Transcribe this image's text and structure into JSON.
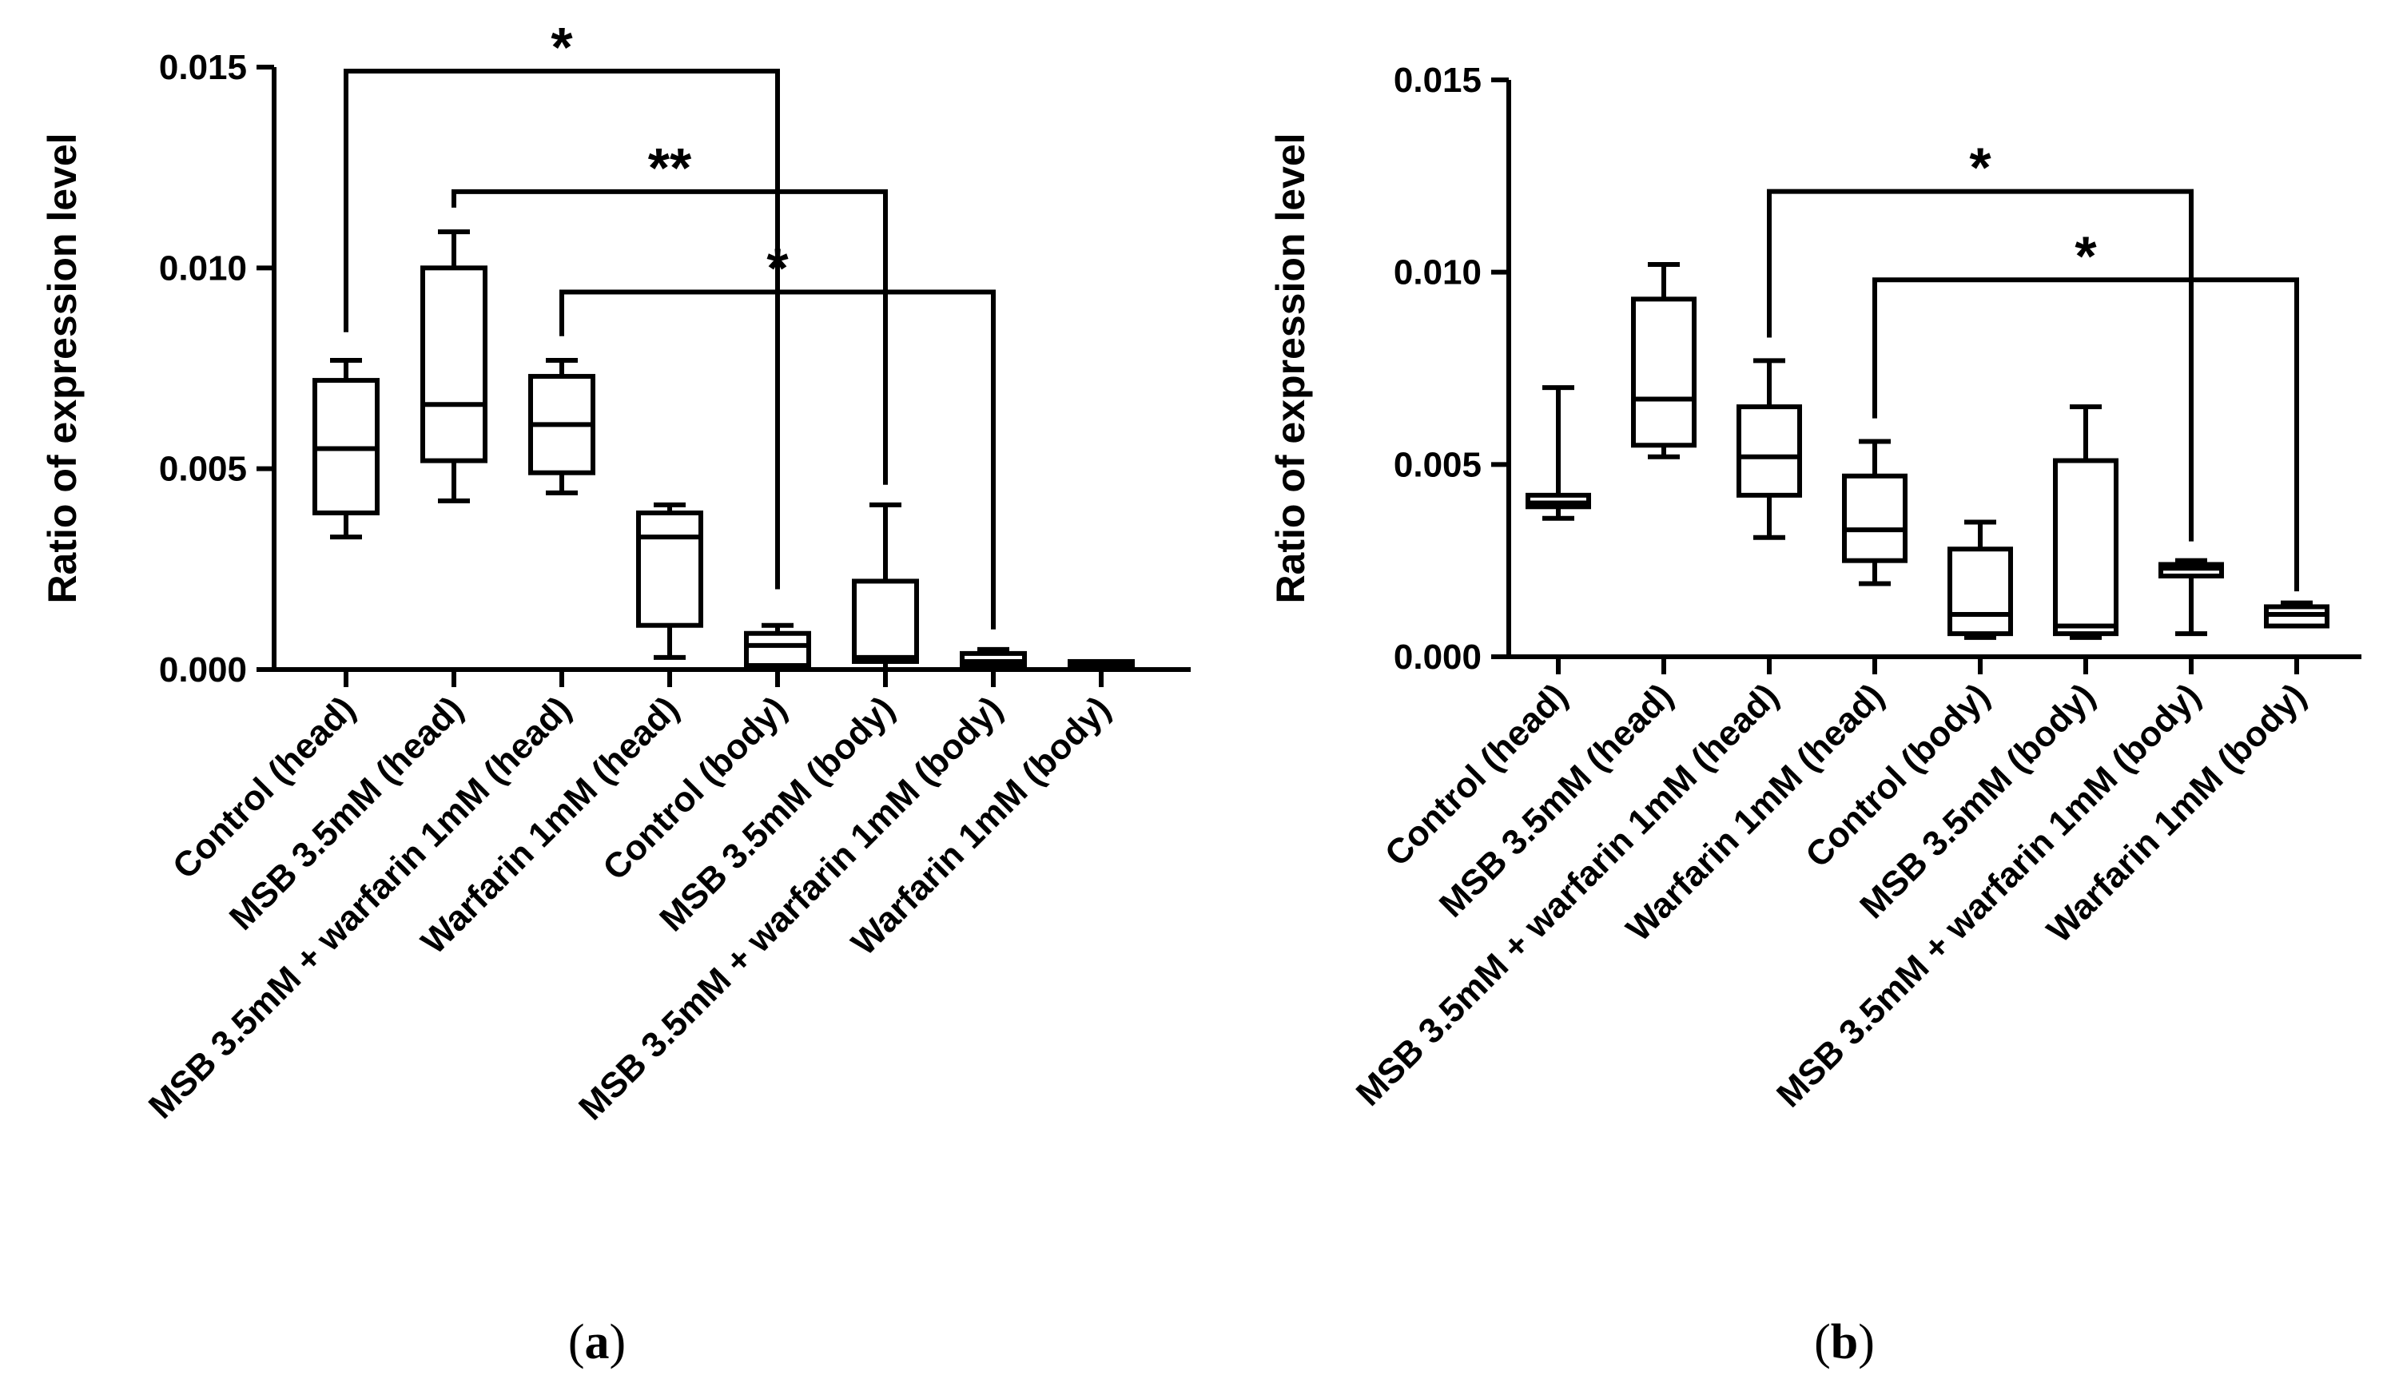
{
  "chart_data": [
    {
      "type": "box",
      "panel_label": {
        "open": "(",
        "letter": "a",
        "close": ")"
      },
      "ylabel": "Ratio of expression level",
      "ylim": [
        0,
        0.015
      ],
      "yticks": [
        "0.000",
        "0.005",
        "0.010",
        "0.015"
      ],
      "categories": [
        "Control (head)",
        "MSB 3.5mM (head)",
        "MSB 3.5mM + warfarin 1mM (head)",
        "Warfarin 1mM (head)",
        "Control (body)",
        "MSB 3.5mM (body)",
        "MSB 3.5mM + warfarin 1mM (body)",
        "Warfarin 1mM (body)"
      ],
      "boxes": [
        {
          "min": 0.0033,
          "q1": 0.0039,
          "median": 0.0055,
          "q3": 0.0072,
          "max": 0.0077
        },
        {
          "min": 0.0042,
          "q1": 0.0052,
          "median": 0.0066,
          "q3": 0.01,
          "max": 0.0109
        },
        {
          "min": 0.0044,
          "q1": 0.0049,
          "median": 0.0061,
          "q3": 0.0073,
          "max": 0.0077
        },
        {
          "min": 0.0003,
          "q1": 0.0011,
          "median": 0.0033,
          "q3": 0.0039,
          "max": 0.0041
        },
        {
          "min": 0.0,
          "q1": 0.0001,
          "median": 0.0006,
          "q3": 0.0009,
          "max": 0.0011
        },
        {
          "min": 0.0,
          "q1": 0.0002,
          "median": 0.0003,
          "q3": 0.0022,
          "max": 0.0041
        },
        {
          "min": 0.0,
          "q1": 0.0001,
          "median": 0.0002,
          "q3": 0.0004,
          "max": 0.0005
        },
        {
          "min": 0.0,
          "q1": 0.0001,
          "median": 0.0001,
          "q3": 0.0002,
          "max": 0.0002
        }
      ],
      "significance": [
        {
          "from": 0,
          "to": 4,
          "label": "*",
          "bar_y": 0.0149,
          "start_y": 0.0084,
          "end_y": 0.002
        },
        {
          "from": 1,
          "to": 5,
          "label": "**",
          "bar_y": 0.0119,
          "start_y": 0.0115,
          "end_y": 0.0046
        },
        {
          "from": 2,
          "to": 6,
          "label": "*",
          "bar_y": 0.0094,
          "start_y": 0.0083,
          "end_y": 0.001
        }
      ]
    },
    {
      "type": "box",
      "panel_label": {
        "open": "(",
        "letter": "b",
        "close": ")"
      },
      "ylabel": "Ratio of expression level",
      "ylim": [
        0,
        0.015
      ],
      "yticks": [
        "0.000",
        "0.005",
        "0.010",
        "0.015"
      ],
      "categories": [
        "Control (head)",
        "MSB 3.5mM (head)",
        "MSB 3.5mM + warfarin 1mM (head)",
        "Warfarin 1mM (head)",
        "Control (body)",
        "MSB 3.5mM (body)",
        "MSB 3.5mM + warfarin 1mM (body)",
        "Warfarin 1mM (body)"
      ],
      "boxes": [
        {
          "min": 0.0036,
          "q1": 0.0039,
          "median": 0.004,
          "q3": 0.0042,
          "max": 0.007
        },
        {
          "min": 0.0052,
          "q1": 0.0055,
          "median": 0.0067,
          "q3": 0.0093,
          "max": 0.0102
        },
        {
          "min": 0.0031,
          "q1": 0.0042,
          "median": 0.0052,
          "q3": 0.0065,
          "max": 0.0077
        },
        {
          "min": 0.0019,
          "q1": 0.0025,
          "median": 0.0033,
          "q3": 0.0047,
          "max": 0.0056
        },
        {
          "min": 0.0005,
          "q1": 0.0006,
          "median": 0.0011,
          "q3": 0.0028,
          "max": 0.0035
        },
        {
          "min": 0.0005,
          "q1": 0.0006,
          "median": 0.0008,
          "q3": 0.0051,
          "max": 0.0065
        },
        {
          "min": 0.0006,
          "q1": 0.0021,
          "median": 0.0023,
          "q3": 0.0024,
          "max": 0.0025
        },
        {
          "min": 0.0008,
          "q1": 0.0008,
          "median": 0.0011,
          "q3": 0.0013,
          "max": 0.0014
        }
      ],
      "significance": [
        {
          "from": 2,
          "to": 6,
          "label": "*",
          "bar_y": 0.0121,
          "start_y": 0.0083,
          "end_y": 0.003
        },
        {
          "from": 3,
          "to": 7,
          "label": "*",
          "bar_y": 0.0098,
          "start_y": 0.0062,
          "end_y": 0.0017
        }
      ]
    }
  ]
}
